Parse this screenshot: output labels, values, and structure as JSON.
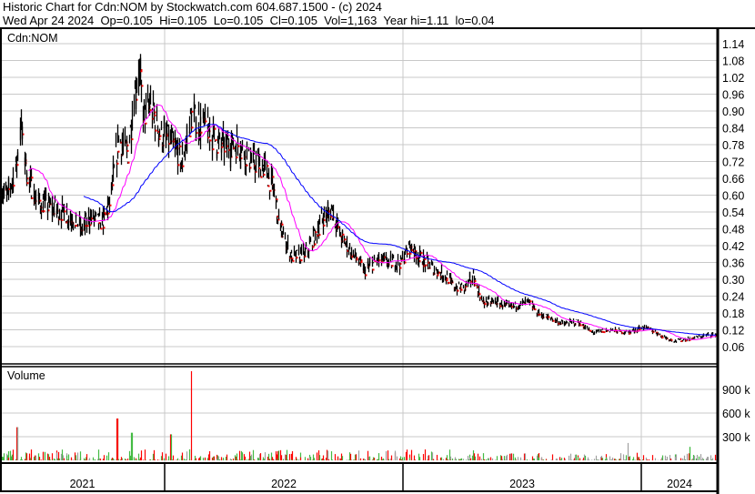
{
  "header": {
    "title": "Historic Chart for Cdn:NOM by Stockwatch.com 604.687.1500 - (c) 2024",
    "quote": "Wed Apr 24 2024  Op=0.105  Hi=0.105  Lo=0.105  Cl=0.105  Vol=1,163  Year hi=1.11  lo=0.04"
  },
  "chart_data": [
    {
      "type": "line",
      "subtype": "ohlc-bars",
      "title": "Cdn:NOM",
      "ylim": [
        0.03,
        1.17
      ],
      "y_ticks": [
        "1.14",
        "1.08",
        "1.02",
        "0.96",
        "0.90",
        "0.84",
        "0.78",
        "0.72",
        "0.66",
        "0.60",
        "0.54",
        "0.48",
        "0.42",
        "0.36",
        "0.30",
        "0.24",
        "0.18",
        "0.12",
        "0.06"
      ],
      "x_range": [
        "2021-04-24",
        "2024-04-24"
      ],
      "x_tick_labels": [
        "2021",
        "2022",
        "2023",
        "2024"
      ],
      "grid": true,
      "colors": {
        "bars": "#000000",
        "down_close": "#ff0000",
        "ma_short": "#ff00ff",
        "ma_long": "#0000ff"
      },
      "close_series": [
        [
          "2021-04-24",
          0.62
        ],
        [
          "2021-05-05",
          0.6
        ],
        [
          "2021-05-18",
          0.7
        ],
        [
          "2021-05-25",
          0.85
        ],
        [
          "2021-06-05",
          0.66
        ],
        [
          "2021-06-19",
          0.58
        ],
        [
          "2021-07-17",
          0.55
        ],
        [
          "2021-08-13",
          0.52
        ],
        [
          "2021-08-27",
          0.48
        ],
        [
          "2021-09-10",
          0.52
        ],
        [
          "2021-09-27",
          0.5
        ],
        [
          "2021-10-08",
          0.57
        ],
        [
          "2021-10-22",
          0.8
        ],
        [
          "2021-11-05",
          0.75
        ],
        [
          "2021-11-15",
          0.95
        ],
        [
          "2021-11-22",
          1.05
        ],
        [
          "2021-11-30",
          0.88
        ],
        [
          "2021-12-10",
          0.92
        ],
        [
          "2021-12-24",
          0.82
        ],
        [
          "2022-01-07",
          0.8
        ],
        [
          "2022-01-28",
          0.72
        ],
        [
          "2022-02-10",
          0.88
        ],
        [
          "2022-03-03",
          0.85
        ],
        [
          "2022-03-24",
          0.78
        ],
        [
          "2022-04-24",
          0.78
        ],
        [
          "2022-05-12",
          0.72
        ],
        [
          "2022-06-02",
          0.7
        ],
        [
          "2022-06-16",
          0.62
        ],
        [
          "2022-06-27",
          0.48
        ],
        [
          "2022-07-14",
          0.38
        ],
        [
          "2022-08-04",
          0.39
        ],
        [
          "2022-08-17",
          0.45
        ],
        [
          "2022-08-31",
          0.52
        ],
        [
          "2022-09-14",
          0.55
        ],
        [
          "2022-09-28",
          0.45
        ],
        [
          "2022-10-19",
          0.38
        ],
        [
          "2022-11-02",
          0.33
        ],
        [
          "2022-11-23",
          0.37
        ],
        [
          "2022-12-14",
          0.36
        ],
        [
          "2022-12-28",
          0.36
        ],
        [
          "2023-01-11",
          0.42
        ],
        [
          "2023-01-25",
          0.38
        ],
        [
          "2023-02-15",
          0.34
        ],
        [
          "2023-03-07",
          0.31
        ],
        [
          "2023-03-21",
          0.27
        ],
        [
          "2023-04-04",
          0.27
        ],
        [
          "2023-04-18",
          0.31
        ],
        [
          "2023-05-02",
          0.22
        ],
        [
          "2023-05-23",
          0.22
        ],
        [
          "2023-06-13",
          0.2
        ],
        [
          "2023-07-11",
          0.22
        ],
        [
          "2023-07-25",
          0.18
        ],
        [
          "2023-08-15",
          0.16
        ],
        [
          "2023-09-05",
          0.14
        ],
        [
          "2023-09-25",
          0.15
        ],
        [
          "2023-10-16",
          0.11
        ],
        [
          "2023-11-13",
          0.12
        ],
        [
          "2023-12-11",
          0.11
        ],
        [
          "2024-01-02",
          0.13
        ],
        [
          "2024-01-16",
          0.12
        ],
        [
          "2024-01-30",
          0.1
        ],
        [
          "2024-02-20",
          0.08
        ],
        [
          "2024-03-18",
          0.09
        ],
        [
          "2024-04-08",
          0.1
        ],
        [
          "2024-04-24",
          0.105
        ]
      ],
      "year_high": 1.11,
      "year_low": 0.04
    },
    {
      "type": "bar",
      "title": "Volume",
      "y_ticks": [
        "900 k",
        "600 k",
        "300 k"
      ],
      "ylim": [
        0,
        1150000
      ],
      "colors": {
        "up": "#44bb44",
        "down": "#ff0000",
        "unchanged": "#a0a0a0"
      },
      "notable_volumes": [
        [
          "2021-05-20",
          420000
        ],
        [
          "2021-10-20",
          530000
        ],
        [
          "2021-11-12",
          350000
        ],
        [
          "2022-02-12",
          1130000
        ],
        [
          "2022-01-10",
          330000
        ],
        [
          "2023-12-10",
          220000
        ],
        [
          "2024-03-15",
          170000
        ]
      ]
    }
  ]
}
